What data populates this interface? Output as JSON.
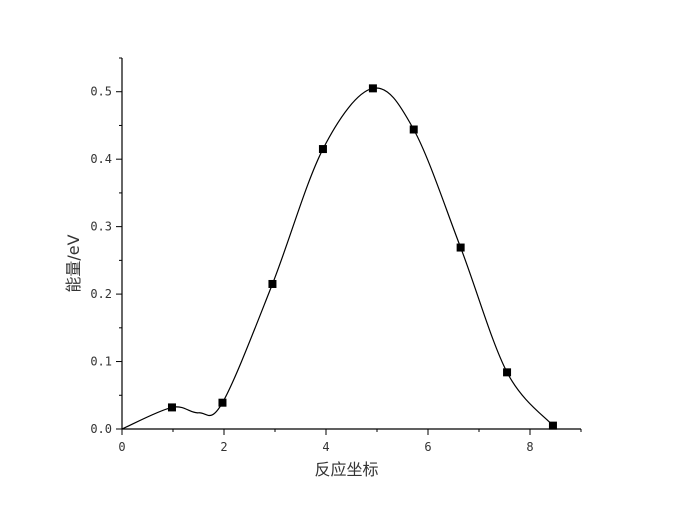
{
  "chart_data": {
    "type": "line",
    "title": "",
    "xlabel": "反应坐标",
    "ylabel": "能量/eV",
    "xlim": [
      0,
      9
    ],
    "ylim": [
      0,
      0.55
    ],
    "x_ticks": [
      0,
      2,
      4,
      6,
      8
    ],
    "x_tick_labels": [
      "0",
      "2",
      "4",
      "6",
      "8"
    ],
    "y_ticks": [
      0.0,
      0.1,
      0.2,
      0.3,
      0.4,
      0.5
    ],
    "y_tick_labels": [
      "0.0",
      "0.1",
      "0.2",
      "0.3",
      "0.4",
      "0.5"
    ],
    "grid": false,
    "legend": "none",
    "series": [
      {
        "marker": "square",
        "color": "#000000",
        "points": [
          {
            "x": 0.98,
            "y": 0.032
          },
          {
            "x": 1.97,
            "y": 0.039
          },
          {
            "x": 2.95,
            "y": 0.215
          },
          {
            "x": 3.94,
            "y": 0.415
          },
          {
            "x": 4.92,
            "y": 0.505
          },
          {
            "x": 5.72,
            "y": 0.444
          },
          {
            "x": 6.64,
            "y": 0.269
          },
          {
            "x": 7.55,
            "y": 0.084
          },
          {
            "x": 8.45,
            "y": 0.005
          }
        ],
        "curve": [
          {
            "x": 0.0,
            "y": 0.0
          },
          {
            "x": 0.98,
            "y": 0.032
          },
          {
            "x": 1.5,
            "y": 0.024
          },
          {
            "x": 1.97,
            "y": 0.039
          },
          {
            "x": 2.95,
            "y": 0.215
          },
          {
            "x": 3.94,
            "y": 0.415
          },
          {
            "x": 4.92,
            "y": 0.505
          },
          {
            "x": 5.72,
            "y": 0.444
          },
          {
            "x": 6.64,
            "y": 0.269
          },
          {
            "x": 7.55,
            "y": 0.084
          },
          {
            "x": 8.45,
            "y": 0.005
          }
        ]
      }
    ]
  }
}
